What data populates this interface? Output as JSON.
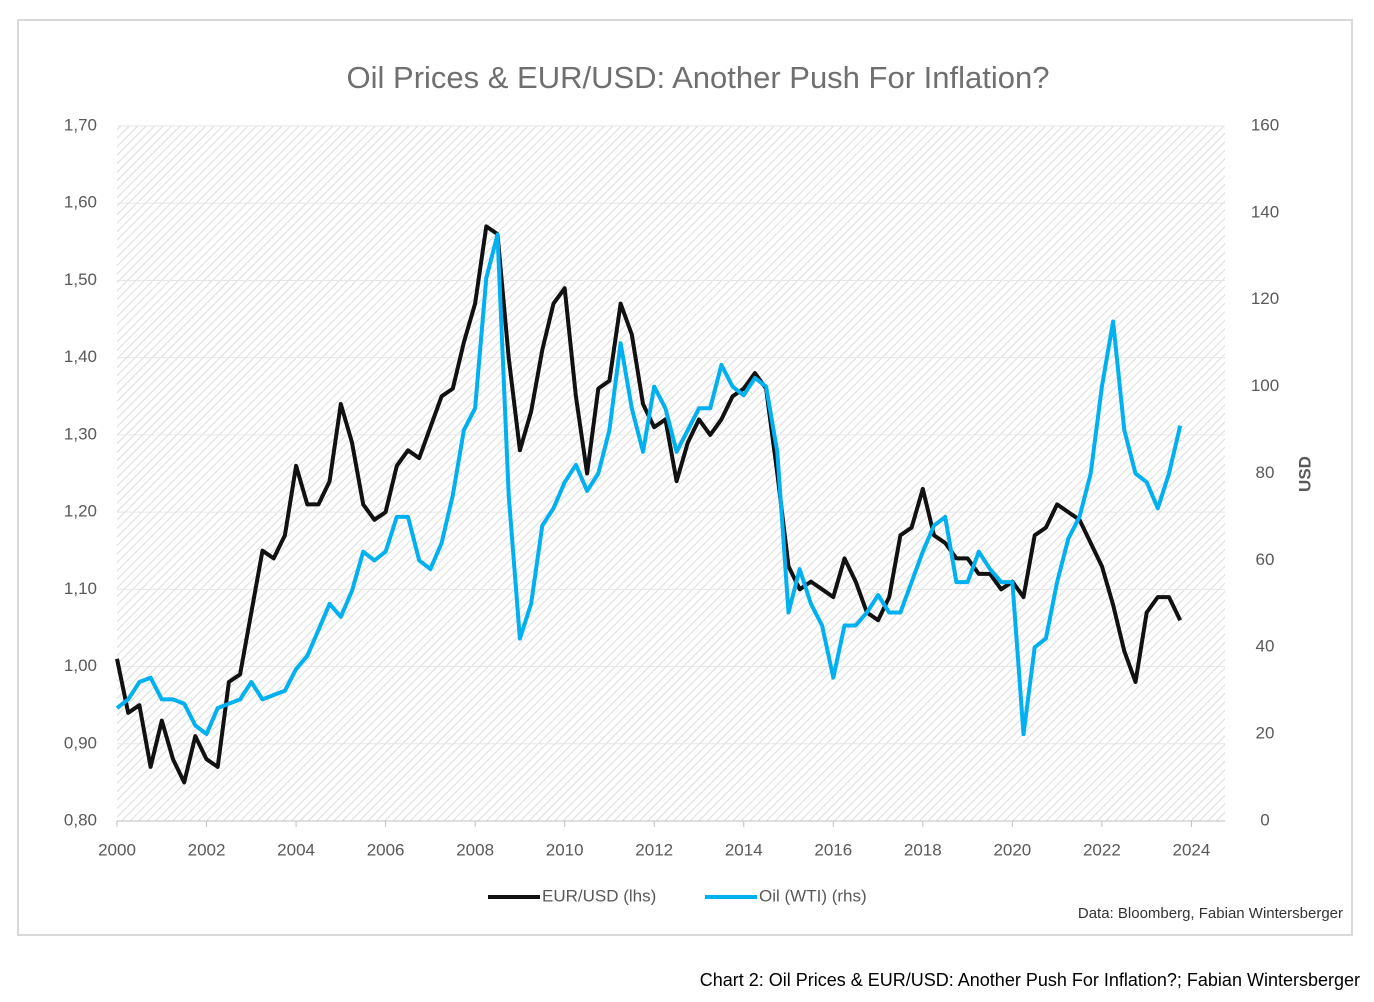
{
  "chart_data": {
    "type": "line",
    "title": "Oil Prices & EUR/USD: Another Push For Inflation?",
    "y2label": "USD",
    "source": "Data: Bloomberg, Fabian Wintersberger",
    "caption": "Chart 2: Oil Prices & EUR/USD: Another Push For Inflation?; Fabian Wintersberger",
    "x": [
      2000,
      2000.25,
      2000.5,
      2000.75,
      2001,
      2001.25,
      2001.5,
      2001.75,
      2002,
      2002.25,
      2002.5,
      2002.75,
      2003,
      2003.25,
      2003.5,
      2003.75,
      2004,
      2004.25,
      2004.5,
      2004.75,
      2005,
      2005.25,
      2005.5,
      2005.75,
      2006,
      2006.25,
      2006.5,
      2006.75,
      2007,
      2007.25,
      2007.5,
      2007.75,
      2008,
      2008.25,
      2008.5,
      2008.75,
      2009,
      2009.25,
      2009.5,
      2009.75,
      2010,
      2010.25,
      2010.5,
      2010.75,
      2011,
      2011.25,
      2011.5,
      2011.75,
      2012,
      2012.25,
      2012.5,
      2012.75,
      2013,
      2013.25,
      2013.5,
      2013.75,
      2014,
      2014.25,
      2014.5,
      2014.75,
      2015,
      2015.25,
      2015.5,
      2015.75,
      2016,
      2016.25,
      2016.5,
      2016.75,
      2017,
      2017.25,
      2017.5,
      2017.75,
      2018,
      2018.25,
      2018.5,
      2018.75,
      2019,
      2019.25,
      2019.5,
      2019.75,
      2020,
      2020.25,
      2020.5,
      2020.75,
      2021,
      2021.25,
      2021.5,
      2021.75,
      2022,
      2022.25,
      2022.5,
      2022.75,
      2023,
      2023.25,
      2023.5,
      2023.75
    ],
    "series": [
      {
        "name": "EUR/USD (lhs)",
        "color": "#111111",
        "values": [
          1.01,
          0.94,
          0.95,
          0.87,
          0.93,
          0.88,
          0.85,
          0.91,
          0.88,
          0.87,
          0.98,
          0.99,
          1.07,
          1.15,
          1.14,
          1.17,
          1.26,
          1.21,
          1.21,
          1.24,
          1.34,
          1.29,
          1.21,
          1.19,
          1.2,
          1.26,
          1.28,
          1.27,
          1.31,
          1.35,
          1.36,
          1.42,
          1.47,
          1.57,
          1.56,
          1.4,
          1.28,
          1.33,
          1.41,
          1.47,
          1.49,
          1.35,
          1.25,
          1.36,
          1.37,
          1.47,
          1.43,
          1.34,
          1.31,
          1.32,
          1.24,
          1.29,
          1.32,
          1.3,
          1.32,
          1.35,
          1.36,
          1.38,
          1.36,
          1.25,
          1.13,
          1.1,
          1.11,
          1.1,
          1.09,
          1.14,
          1.11,
          1.07,
          1.06,
          1.09,
          1.17,
          1.18,
          1.23,
          1.17,
          1.16,
          1.14,
          1.14,
          1.12,
          1.12,
          1.1,
          1.11,
          1.09,
          1.17,
          1.18,
          1.21,
          1.2,
          1.19,
          1.16,
          1.13,
          1.08,
          1.02,
          0.98,
          1.07,
          1.09,
          1.09,
          1.06
        ]
      },
      {
        "name": "Oil (WTI) (rhs)",
        "color": "#00b0f0",
        "axis": "y2",
        "values": [
          26,
          28,
          32,
          33,
          28,
          28,
          27,
          22,
          20,
          26,
          27,
          28,
          32,
          28,
          29,
          30,
          35,
          38,
          44,
          50,
          47,
          53,
          62,
          60,
          62,
          70,
          70,
          60,
          58,
          64,
          75,
          90,
          95,
          125,
          135,
          75,
          42,
          50,
          68,
          72,
          78,
          82,
          76,
          80,
          90,
          110,
          95,
          85,
          100,
          95,
          85,
          90,
          95,
          95,
          105,
          100,
          98,
          102,
          100,
          85,
          48,
          58,
          50,
          45,
          33,
          45,
          45,
          48,
          52,
          48,
          48,
          55,
          62,
          68,
          70,
          55,
          55,
          62,
          58,
          55,
          55,
          20,
          40,
          42,
          55,
          65,
          70,
          80,
          100,
          115,
          90,
          80,
          78,
          72,
          80,
          91
        ]
      }
    ],
    "xlim": [
      2000,
      2024.75
    ],
    "xticks": [
      2000,
      2002,
      2004,
      2006,
      2008,
      2010,
      2012,
      2014,
      2016,
      2018,
      2020,
      2022,
      2024
    ],
    "ylim": [
      0.8,
      1.7
    ],
    "yticks": [
      {
        "value": 0.8,
        "label": "0,80"
      },
      {
        "value": 0.9,
        "label": "0,90"
      },
      {
        "value": 1.0,
        "label": "1,00"
      },
      {
        "value": 1.1,
        "label": "1,10"
      },
      {
        "value": 1.2,
        "label": "1,20"
      },
      {
        "value": 1.3,
        "label": "1,30"
      },
      {
        "value": 1.4,
        "label": "1,40"
      },
      {
        "value": 1.5,
        "label": "1,50"
      },
      {
        "value": 1.6,
        "label": "1,60"
      },
      {
        "value": 1.7,
        "label": "1,70"
      }
    ],
    "y2lim": [
      0,
      160
    ],
    "y2ticks": [
      0,
      20,
      40,
      60,
      80,
      100,
      120,
      140,
      160
    ],
    "grid": true,
    "legend": "bottom"
  }
}
